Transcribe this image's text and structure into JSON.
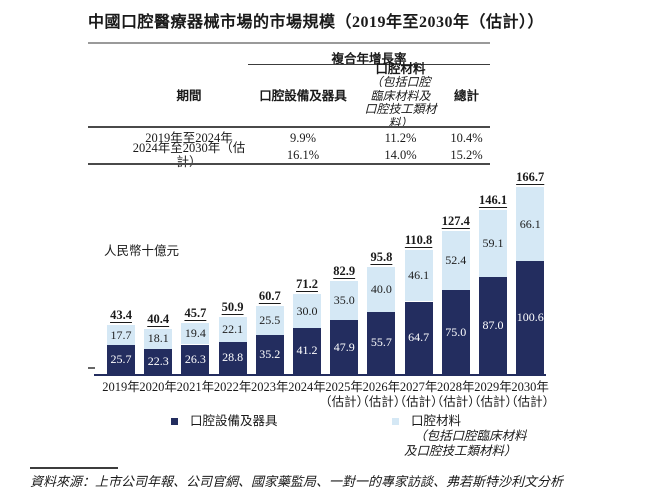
{
  "title": "中國口腔醫療器械市場的市場規模（2019年至2030年（估計））",
  "cagr_table": {
    "group_header": "複合年增長率",
    "columns": {
      "period": "期間",
      "equipment": "口腔設備及器具",
      "materials": "口腔材料",
      "materials_note_1": "（包括口腔",
      "materials_note_2": "臨床材料及",
      "materials_note_3": "口腔技工類材料）",
      "total": "總計"
    },
    "rows": [
      {
        "period": "2019年至2024年",
        "equipment": "9.9%",
        "materials": "11.2%",
        "total": "10.4%"
      },
      {
        "period": "2024年至2030年（估計）",
        "equipment": "16.1%",
        "materials": "14.0%",
        "total": "15.2%"
      }
    ]
  },
  "chart_data": {
    "type": "bar",
    "stacked": true,
    "title": "中國口腔醫療器械市場的市場規模（2019年至2030年（估計））",
    "ylabel": "人民幣十億元",
    "xlabel": "",
    "ylim": [
      0,
      175
    ],
    "grid": false,
    "legend_position": "bottom",
    "categories": [
      {
        "label": "2019年",
        "sub": ""
      },
      {
        "label": "2020年",
        "sub": ""
      },
      {
        "label": "2021年",
        "sub": ""
      },
      {
        "label": "2022年",
        "sub": ""
      },
      {
        "label": "2023年",
        "sub": ""
      },
      {
        "label": "2024年",
        "sub": ""
      },
      {
        "label": "2025年",
        "sub": "（估計）"
      },
      {
        "label": "2026年",
        "sub": "（估計）"
      },
      {
        "label": "2027年",
        "sub": "（估計）"
      },
      {
        "label": "2028年",
        "sub": "（估計）"
      },
      {
        "label": "2029年",
        "sub": "（估計）"
      },
      {
        "label": "2030年",
        "sub": "（估計）"
      }
    ],
    "series": [
      {
        "name": "口腔設備及器具",
        "color": "#232d5f",
        "values": [
          25.7,
          22.3,
          26.3,
          28.8,
          35.2,
          41.2,
          47.9,
          55.7,
          64.7,
          75.0,
          87.0,
          100.6
        ]
      },
      {
        "name": "口腔材料（包括口腔臨床材料及口腔技工類材料）",
        "color": "#d5e8f5",
        "values": [
          17.7,
          18.1,
          19.4,
          22.1,
          25.5,
          30.0,
          35.0,
          40.0,
          46.1,
          52.4,
          59.1,
          66.1
        ]
      }
    ],
    "totals": [
      43.4,
      40.4,
      45.7,
      50.9,
      60.7,
      71.2,
      82.9,
      95.8,
      110.8,
      127.4,
      146.1,
      166.7
    ]
  },
  "legend": [
    {
      "label": "口腔設備及器具",
      "color": "#232d5f"
    },
    {
      "label": "口腔材料",
      "note_1": "（包括口腔臨床材料",
      "note_2": "及口腔技工類材料）",
      "color": "#d5e8f5"
    }
  ],
  "source": "資料來源：上市公司年報、公司官網、國家藥監局、一對一的專家訪談、弗若斯特沙利文分析"
}
